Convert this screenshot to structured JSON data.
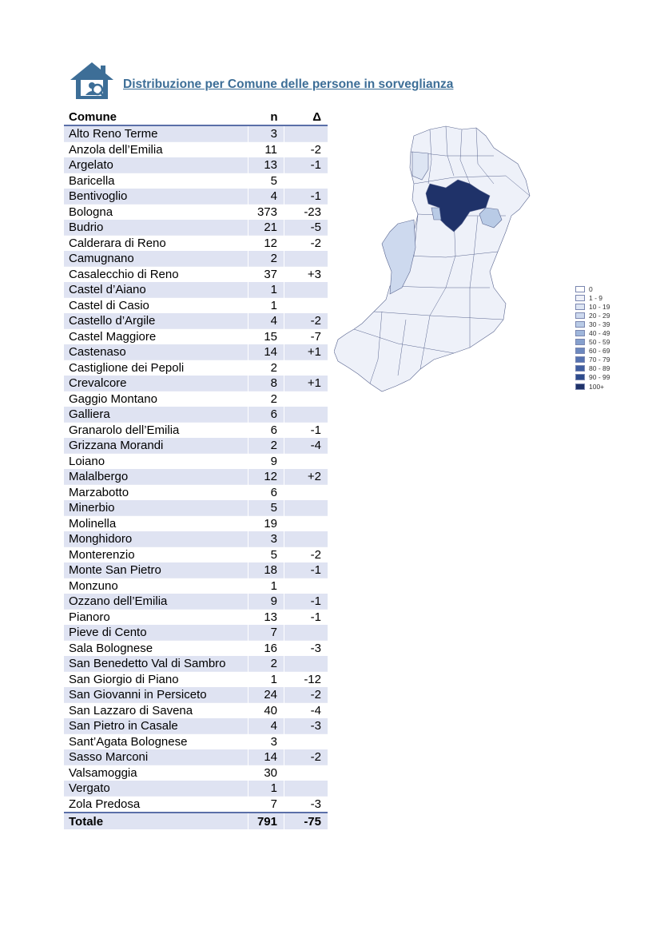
{
  "title": "Distribuzione per Comune delle persone in sorveglianza",
  "logo_icon": "house-person-icon",
  "table": {
    "headers": {
      "comune": "Comune",
      "n": "n",
      "delta": "Δ"
    },
    "rows": [
      {
        "comune": "Alto Reno Terme",
        "n": "3",
        "delta": ""
      },
      {
        "comune": "Anzola dell’Emilia",
        "n": "11",
        "delta": "-2"
      },
      {
        "comune": "Argelato",
        "n": "13",
        "delta": "-1"
      },
      {
        "comune": "Baricella",
        "n": "5",
        "delta": ""
      },
      {
        "comune": "Bentivoglio",
        "n": "4",
        "delta": "-1"
      },
      {
        "comune": "Bologna",
        "n": "373",
        "delta": "-23"
      },
      {
        "comune": "Budrio",
        "n": "21",
        "delta": "-5"
      },
      {
        "comune": "Calderara di Reno",
        "n": "12",
        "delta": "-2"
      },
      {
        "comune": "Camugnano",
        "n": "2",
        "delta": ""
      },
      {
        "comune": "Casalecchio di Reno",
        "n": "37",
        "delta": "+3"
      },
      {
        "comune": "Castel d’Aiano",
        "n": "1",
        "delta": ""
      },
      {
        "comune": "Castel di Casio",
        "n": "1",
        "delta": ""
      },
      {
        "comune": "Castello d’Argile",
        "n": "4",
        "delta": "-2"
      },
      {
        "comune": "Castel Maggiore",
        "n": "15",
        "delta": "-7"
      },
      {
        "comune": "Castenaso",
        "n": "14",
        "delta": "+1"
      },
      {
        "comune": "Castiglione dei Pepoli",
        "n": "2",
        "delta": ""
      },
      {
        "comune": "Crevalcore",
        "n": "8",
        "delta": "+1"
      },
      {
        "comune": "Gaggio Montano",
        "n": "2",
        "delta": ""
      },
      {
        "comune": "Galliera",
        "n": "6",
        "delta": ""
      },
      {
        "comune": "Granarolo dell’Emilia",
        "n": "6",
        "delta": "-1"
      },
      {
        "comune": "Grizzana Morandi",
        "n": "2",
        "delta": "-4"
      },
      {
        "comune": "Loiano",
        "n": "9",
        "delta": ""
      },
      {
        "comune": "Malalbergo",
        "n": "12",
        "delta": "+2"
      },
      {
        "comune": "Marzabotto",
        "n": "6",
        "delta": ""
      },
      {
        "comune": "Minerbio",
        "n": "5",
        "delta": ""
      },
      {
        "comune": "Molinella",
        "n": "19",
        "delta": ""
      },
      {
        "comune": "Monghidoro",
        "n": "3",
        "delta": ""
      },
      {
        "comune": "Monterenzio",
        "n": "5",
        "delta": "-2"
      },
      {
        "comune": "Monte San Pietro",
        "n": "18",
        "delta": "-1"
      },
      {
        "comune": "Monzuno",
        "n": "1",
        "delta": ""
      },
      {
        "comune": "Ozzano dell’Emilia",
        "n": "9",
        "delta": "-1"
      },
      {
        "comune": "Pianoro",
        "n": "13",
        "delta": "-1"
      },
      {
        "comune": "Pieve di Cento",
        "n": "7",
        "delta": ""
      },
      {
        "comune": "Sala Bolognese",
        "n": "16",
        "delta": "-3"
      },
      {
        "comune": "San Benedetto Val di Sambro",
        "n": "2",
        "delta": ""
      },
      {
        "comune": "San Giorgio di Piano",
        "n": "1",
        "delta": "-12"
      },
      {
        "comune": "San Giovanni in Persiceto",
        "n": "24",
        "delta": "-2"
      },
      {
        "comune": "San Lazzaro di Savena",
        "n": "40",
        "delta": "-4"
      },
      {
        "comune": "San Pietro in Casale",
        "n": "4",
        "delta": "-3"
      },
      {
        "comune": "Sant’Agata Bolognese",
        "n": "3",
        "delta": ""
      },
      {
        "comune": "Sasso Marconi",
        "n": "14",
        "delta": "-2"
      },
      {
        "comune": "Valsamoggia",
        "n": "30",
        "delta": ""
      },
      {
        "comune": "Vergato",
        "n": "1",
        "delta": ""
      },
      {
        "comune": "Zola Predosa",
        "n": "7",
        "delta": "-3"
      }
    ],
    "total": {
      "label": "Totale",
      "n": "791",
      "delta": "-75"
    }
  },
  "map": {
    "legend": [
      {
        "label": "0",
        "color": "#ffffff"
      },
      {
        "label": "1 - 9",
        "color": "#eef1f9"
      },
      {
        "label": "10 - 19",
        "color": "#dde5f3"
      },
      {
        "label": "20 - 29",
        "color": "#cdd9ee"
      },
      {
        "label": "30 - 39",
        "color": "#b9cbe6"
      },
      {
        "label": "40 - 49",
        "color": "#9fb6db"
      },
      {
        "label": "50 - 59",
        "color": "#86a0cd"
      },
      {
        "label": "60 - 69",
        "color": "#6d89bf"
      },
      {
        "label": "70 - 79",
        "color": "#5673b1"
      },
      {
        "label": "80 - 89",
        "color": "#405ea0"
      },
      {
        "label": "90 - 99",
        "color": "#2d4b8c"
      },
      {
        "label": "100+",
        "color": "#1f3269"
      }
    ]
  }
}
